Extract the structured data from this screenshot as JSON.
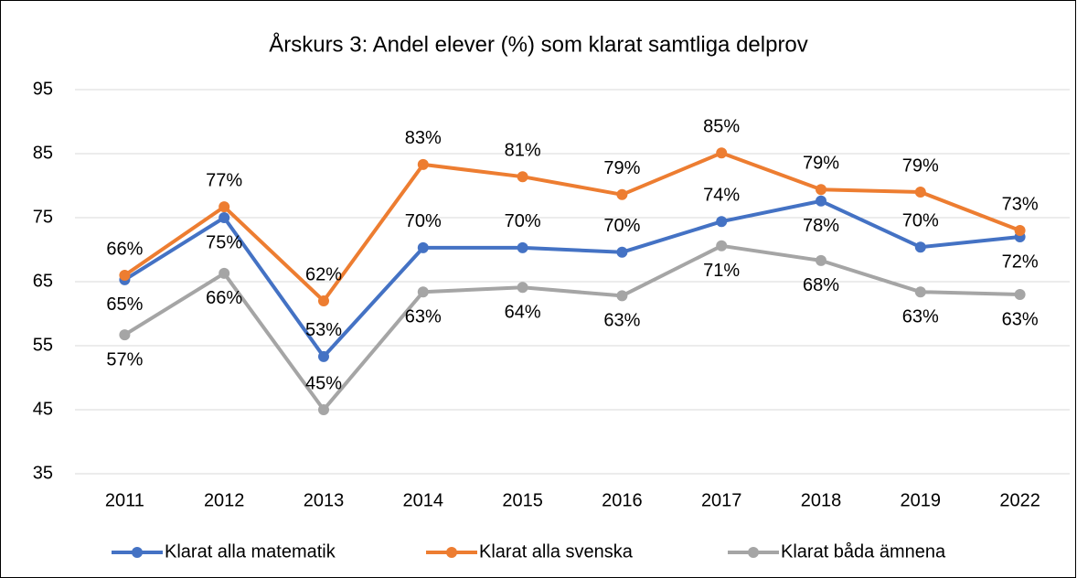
{
  "chart_data": {
    "type": "line",
    "title": "Årskurs 3: Andel elever (%) som klarat samtliga delprov",
    "categories": [
      "2011",
      "2012",
      "2013",
      "2014",
      "2015",
      "2016",
      "2017",
      "2018",
      "2019",
      "2022"
    ],
    "series": [
      {
        "name": "Klarat alla matematik",
        "color": "#4472c4",
        "values": [
          65.3,
          75,
          53.3,
          70.3,
          70.3,
          69.6,
          74.4,
          77.6,
          70.4,
          72
        ],
        "value_labels": [
          "65%",
          "75%",
          "53%",
          "70%",
          "70%",
          "70%",
          "74%",
          "78%",
          "70%",
          "72%"
        ]
      },
      {
        "name": "Klarat alla svenska",
        "color": "#ed7d31",
        "values": [
          66,
          76.7,
          62,
          83.3,
          81.4,
          78.6,
          85.1,
          79.4,
          79,
          73
        ],
        "value_labels": [
          "66%",
          "77%",
          "62%",
          "83%",
          "81%",
          "79%",
          "85%",
          "79%",
          "79%",
          "73%"
        ]
      },
      {
        "name": "Klarat båda ämnena",
        "color": "#a5a5a5",
        "values": [
          56.7,
          66.3,
          45,
          63.4,
          64.1,
          62.8,
          70.6,
          68.3,
          63.4,
          63
        ],
        "value_labels": [
          "57%",
          "66%",
          "45%",
          "63%",
          "64%",
          "63%",
          "71%",
          "68%",
          "63%",
          "63%"
        ]
      }
    ],
    "ylim": [
      35,
      95
    ],
    "yticks": [
      35,
      45,
      55,
      65,
      75,
      85,
      95
    ],
    "grid": true,
    "legend": "bottom"
  }
}
